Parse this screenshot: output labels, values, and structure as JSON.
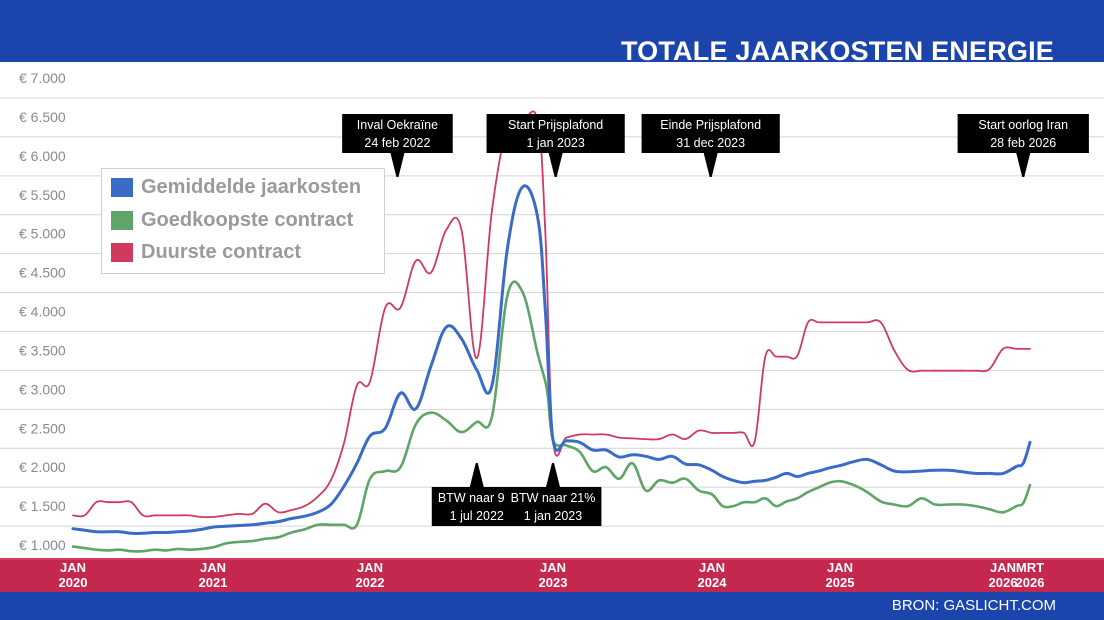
{
  "header": {
    "title": "TOTALE JAARKOSTEN ENERGIE"
  },
  "footer": {
    "source": "BRON: GASLICHT.COM"
  },
  "colors": {
    "header_band": "#1c44ad",
    "axis_band": "#c4284e",
    "gemiddelde": "#3a6bc6",
    "goedkoopste": "#5fa468",
    "duurste": "#d03a5e",
    "gridline": "#d4d4d4"
  },
  "chart_data": {
    "type": "line",
    "title": "TOTALE JAARKOSTEN ENERGIE",
    "xlabel": "",
    "ylabel": "",
    "ylim": [
      1000,
      7000
    ],
    "grid": true,
    "legend_position": "top-left",
    "y_ticks": [
      "€ 1.000",
      "€ 1.500",
      "€ 2.000",
      "€ 2.500",
      "€ 3.000",
      "€ 3.500",
      "€ 4.000",
      "€ 4.500",
      "€ 5.000",
      "€ 5.500",
      "€ 6.000",
      "€ 6.500",
      "€ 7.000"
    ],
    "y_tick_values": [
      1000,
      1500,
      2000,
      2500,
      3000,
      3500,
      4000,
      4500,
      5000,
      5500,
      6000,
      6500,
      7000
    ],
    "x_ticks": [
      {
        "line1": "JAN",
        "line2": "2020",
        "t": 0
      },
      {
        "line1": "JAN",
        "line2": "2021",
        "t": 12
      },
      {
        "line1": "JAN",
        "line2": "2022",
        "t": 24
      },
      {
        "line1": "JAN",
        "line2": "2023",
        "t": 36
      },
      {
        "line1": "JAN",
        "line2": "2024",
        "t": 48
      },
      {
        "line1": "JAN",
        "line2": "2025",
        "t": 60
      },
      {
        "line1": "JAN",
        "line2": "2026",
        "t": 72
      },
      {
        "line1": "MRT",
        "line2": "2026",
        "t": 74
      }
    ],
    "x_unit": "months since Jan 2020",
    "series": [
      {
        "name": "Gemiddelde jaarkosten",
        "color": "#3a6bc6",
        "points": [
          [
            0,
            1210
          ],
          [
            1,
            1190
          ],
          [
            2,
            1170
          ],
          [
            3,
            1170
          ],
          [
            4,
            1170
          ],
          [
            5,
            1150
          ],
          [
            6,
            1150
          ],
          [
            7,
            1160
          ],
          [
            8,
            1160
          ],
          [
            9,
            1170
          ],
          [
            10,
            1180
          ],
          [
            11,
            1200
          ],
          [
            12,
            1230
          ],
          [
            13,
            1240
          ],
          [
            14,
            1250
          ],
          [
            15,
            1260
          ],
          [
            16,
            1280
          ],
          [
            17,
            1300
          ],
          [
            18,
            1340
          ],
          [
            19,
            1370
          ],
          [
            20,
            1420
          ],
          [
            21,
            1520
          ],
          [
            22,
            1750
          ],
          [
            23,
            2050
          ],
          [
            24,
            2400
          ],
          [
            25,
            2500
          ],
          [
            26,
            2950
          ],
          [
            27,
            2750
          ],
          [
            28,
            3300
          ],
          [
            29,
            3800
          ],
          [
            30,
            3650
          ],
          [
            31,
            3250
          ],
          [
            32,
            3050
          ],
          [
            33,
            4800
          ],
          [
            34,
            5600
          ],
          [
            35,
            5200
          ],
          [
            35.5,
            4000
          ],
          [
            36,
            2350
          ],
          [
            37,
            2340
          ],
          [
            38,
            2320
          ],
          [
            39,
            2220
          ],
          [
            40,
            2220
          ],
          [
            41,
            2130
          ],
          [
            42,
            2160
          ],
          [
            43,
            2140
          ],
          [
            44,
            2100
          ],
          [
            45,
            2140
          ],
          [
            46,
            2040
          ],
          [
            47,
            2030
          ],
          [
            48,
            1960
          ],
          [
            49,
            1880
          ],
          [
            50,
            1830
          ],
          [
            51,
            1800
          ],
          [
            52,
            1820
          ],
          [
            53,
            1830
          ],
          [
            54,
            1870
          ],
          [
            55,
            1920
          ],
          [
            56,
            1880
          ],
          [
            57,
            1920
          ],
          [
            58,
            1950
          ],
          [
            59,
            1990
          ],
          [
            60,
            2020
          ],
          [
            61,
            2070
          ],
          [
            62,
            2100
          ],
          [
            63,
            2030
          ],
          [
            64,
            1950
          ],
          [
            65,
            1940
          ],
          [
            66,
            1950
          ],
          [
            67,
            1960
          ],
          [
            68,
            1960
          ],
          [
            69,
            1940
          ],
          [
            70,
            1920
          ],
          [
            71,
            1920
          ],
          [
            72,
            1920
          ],
          [
            73,
            2010
          ],
          [
            73.5,
            2050
          ],
          [
            74,
            2320
          ]
        ]
      },
      {
        "name": "Goedkoopste contract",
        "color": "#5fa468",
        "points": [
          [
            0,
            980
          ],
          [
            1,
            960
          ],
          [
            2,
            940
          ],
          [
            3,
            930
          ],
          [
            4,
            940
          ],
          [
            5,
            920
          ],
          [
            6,
            920
          ],
          [
            7,
            940
          ],
          [
            8,
            930
          ],
          [
            9,
            950
          ],
          [
            10,
            940
          ],
          [
            11,
            950
          ],
          [
            12,
            970
          ],
          [
            13,
            1020
          ],
          [
            14,
            1040
          ],
          [
            15,
            1050
          ],
          [
            16,
            1080
          ],
          [
            17,
            1100
          ],
          [
            18,
            1160
          ],
          [
            19,
            1200
          ],
          [
            20,
            1260
          ],
          [
            21,
            1260
          ],
          [
            22,
            1260
          ],
          [
            23,
            1260
          ],
          [
            24,
            1850
          ],
          [
            25,
            1950
          ],
          [
            26,
            2000
          ],
          [
            27,
            2550
          ],
          [
            28,
            2700
          ],
          [
            29,
            2600
          ],
          [
            30,
            2450
          ],
          [
            31,
            2580
          ],
          [
            32,
            2650
          ],
          [
            33,
            4200
          ],
          [
            34,
            4250
          ],
          [
            35,
            3450
          ],
          [
            35.6,
            3000
          ],
          [
            36,
            2350
          ],
          [
            37,
            2280
          ],
          [
            38,
            2200
          ],
          [
            39,
            1950
          ],
          [
            40,
            2000
          ],
          [
            41,
            1850
          ],
          [
            42,
            2050
          ],
          [
            43,
            1700
          ],
          [
            44,
            1830
          ],
          [
            45,
            1800
          ],
          [
            46,
            1850
          ],
          [
            47,
            1700
          ],
          [
            48,
            1650
          ],
          [
            49,
            1500
          ],
          [
            50,
            1500
          ],
          [
            51,
            1550
          ],
          [
            52,
            1550
          ],
          [
            53,
            1600
          ],
          [
            54,
            1500
          ],
          [
            55,
            1560
          ],
          [
            56,
            1600
          ],
          [
            57,
            1680
          ],
          [
            58,
            1740
          ],
          [
            59,
            1800
          ],
          [
            60,
            1820
          ],
          [
            61,
            1770
          ],
          [
            62,
            1680
          ],
          [
            63,
            1560
          ],
          [
            64,
            1520
          ],
          [
            65,
            1500
          ],
          [
            66,
            1600
          ],
          [
            67,
            1520
          ],
          [
            68,
            1520
          ],
          [
            69,
            1520
          ],
          [
            70,
            1500
          ],
          [
            71,
            1460
          ],
          [
            72,
            1420
          ],
          [
            73,
            1500
          ],
          [
            73.5,
            1540
          ],
          [
            74,
            1770
          ]
        ]
      },
      {
        "name": "Duurste contract",
        "color": "#d03a5e",
        "points": [
          [
            0,
            1380
          ],
          [
            1,
            1380
          ],
          [
            2,
            1550
          ],
          [
            3,
            1550
          ],
          [
            4,
            1550
          ],
          [
            5,
            1550
          ],
          [
            6,
            1380
          ],
          [
            7,
            1380
          ],
          [
            8,
            1380
          ],
          [
            9,
            1380
          ],
          [
            10,
            1380
          ],
          [
            11,
            1360
          ],
          [
            12,
            1360
          ],
          [
            13,
            1380
          ],
          [
            14,
            1400
          ],
          [
            15,
            1400
          ],
          [
            16,
            1530
          ],
          [
            17,
            1420
          ],
          [
            18,
            1450
          ],
          [
            19,
            1500
          ],
          [
            20,
            1620
          ],
          [
            21,
            1830
          ],
          [
            22,
            2300
          ],
          [
            23,
            3050
          ],
          [
            24,
            3100
          ],
          [
            25,
            4050
          ],
          [
            26,
            4050
          ],
          [
            27,
            4650
          ],
          [
            28,
            4500
          ],
          [
            29,
            5050
          ],
          [
            30,
            5050
          ],
          [
            31,
            3400
          ],
          [
            32,
            5300
          ],
          [
            33,
            6350
          ],
          [
            34,
            6450
          ],
          [
            35,
            6450
          ],
          [
            35.5,
            5000
          ],
          [
            36,
            2350
          ],
          [
            37,
            2380
          ],
          [
            38,
            2420
          ],
          [
            39,
            2420
          ],
          [
            40,
            2420
          ],
          [
            41,
            2380
          ],
          [
            42,
            2370
          ],
          [
            43,
            2360
          ],
          [
            44,
            2360
          ],
          [
            45,
            2420
          ],
          [
            46,
            2360
          ],
          [
            47,
            2470
          ],
          [
            48,
            2440
          ],
          [
            49,
            2440
          ],
          [
            50,
            2440
          ],
          [
            51,
            2440
          ],
          [
            52,
            2330
          ],
          [
            53,
            3420
          ],
          [
            54,
            3420
          ],
          [
            55,
            3420
          ],
          [
            56,
            3430
          ],
          [
            57,
            3860
          ],
          [
            58,
            3860
          ],
          [
            59,
            3860
          ],
          [
            60,
            3860
          ],
          [
            61,
            3860
          ],
          [
            62,
            3860
          ],
          [
            63,
            3860
          ],
          [
            64,
            3500
          ],
          [
            65,
            3250
          ],
          [
            66,
            3240
          ],
          [
            67,
            3240
          ],
          [
            68,
            3240
          ],
          [
            69,
            3240
          ],
          [
            70,
            3240
          ],
          [
            71,
            3260
          ],
          [
            72,
            3520
          ],
          [
            73,
            3520
          ],
          [
            74,
            3520
          ]
        ]
      }
    ],
    "annotations": [
      {
        "line1": "Inval Oekraïne",
        "line2": "24 feb 2022",
        "t": 25.8,
        "position": "top"
      },
      {
        "line1": "Start Prijsplafond",
        "line2": "1 jan 2023",
        "t": 36.2,
        "position": "top"
      },
      {
        "line1": "Einde Prijsplafond",
        "line2": "31 dec 2023",
        "t": 47.9,
        "position": "top"
      },
      {
        "line1": "Start oorlog Iran",
        "line2": "28 feb 2026",
        "t": 73.5,
        "position": "top"
      },
      {
        "line1": "BTW naar 9%",
        "line2": "1 jul 2022",
        "t": 31,
        "position": "bottom"
      },
      {
        "line1": "BTW naar 21%",
        "line2": "1 jan 2023",
        "t": 36,
        "position": "bottom"
      }
    ]
  },
  "legend": {
    "items": [
      {
        "label": "Gemiddelde jaarkosten",
        "color": "#3a6bc6"
      },
      {
        "label": "Goedkoopste contract",
        "color": "#5fa468"
      },
      {
        "label": "Duurste contract",
        "color": "#d03a5e"
      }
    ]
  }
}
